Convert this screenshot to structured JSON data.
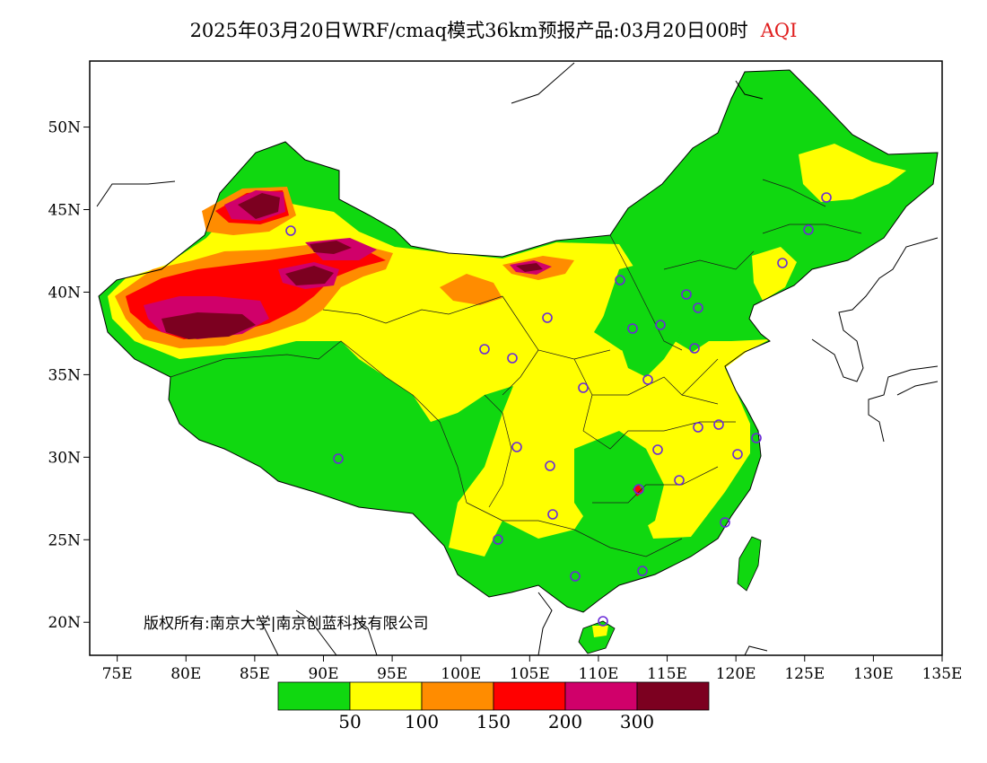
{
  "title": "2025年03月20日WRF/cmaq模式36km预报产品:03月20日00时",
  "title_highlight": "AQI",
  "copyright": "版权所有:南京大学|南京创蓝科技有限公司",
  "colors": {
    "green": "#10d810",
    "yellow": "#ffff00",
    "orange": "#ff8c00",
    "red": "#ff0000",
    "magenta": "#d0006a",
    "maroon": "#7c0020",
    "station_circle": "#6a2ad8"
  },
  "map_extent": {
    "lon": [
      73,
      135
    ],
    "lat": [
      18,
      54
    ]
  },
  "x_ticks": [
    "75E",
    "80E",
    "85E",
    "90E",
    "95E",
    "100E",
    "105E",
    "110E",
    "115E",
    "120E",
    "125E",
    "130E",
    "135E"
  ],
  "y_ticks": [
    "20N",
    "25N",
    "30N",
    "35N",
    "40N",
    "45N",
    "50N"
  ],
  "colorbar": {
    "colors": [
      "#10d810",
      "#ffff00",
      "#ff8c00",
      "#ff0000",
      "#d0006a",
      "#7c0020"
    ],
    "labels": [
      "50",
      "100",
      "150",
      "200",
      "300"
    ]
  }
}
